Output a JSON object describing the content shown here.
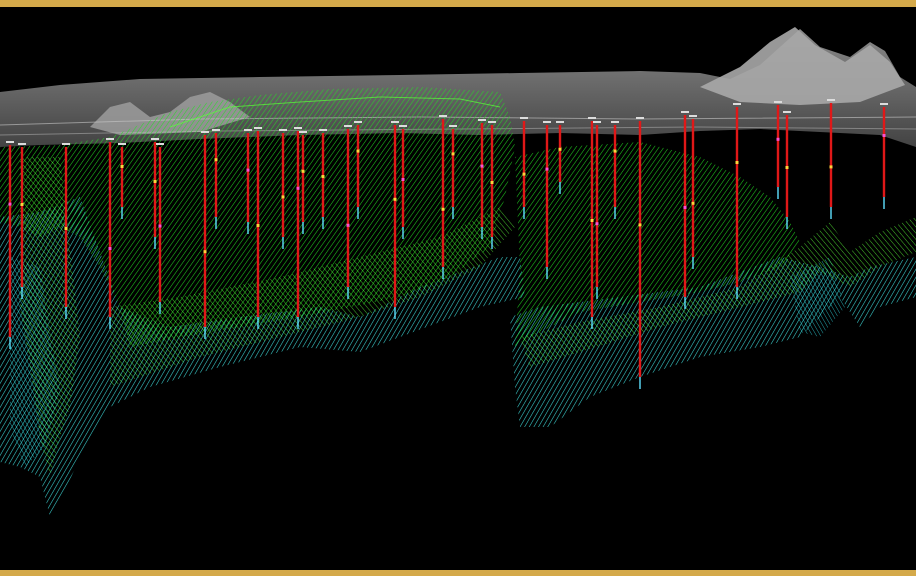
{
  "scene": {
    "colors": {
      "frame": "#d4a94a",
      "background": "#000000",
      "terrain": "#8c8c8c",
      "terrain_light": "#bdbdbd",
      "upper_surface": "#22e022",
      "lower_surface": "#3fe0e0",
      "drillhole": "#e01818",
      "drillhole_tail": "#5fe0ff",
      "assay_marker": "#ffd23c",
      "assay_marker_alt": "#ff4fd0"
    },
    "objects": [
      "terrain-surface",
      "upper-ore-surface",
      "lower-ore-surface",
      "drillholes"
    ]
  }
}
